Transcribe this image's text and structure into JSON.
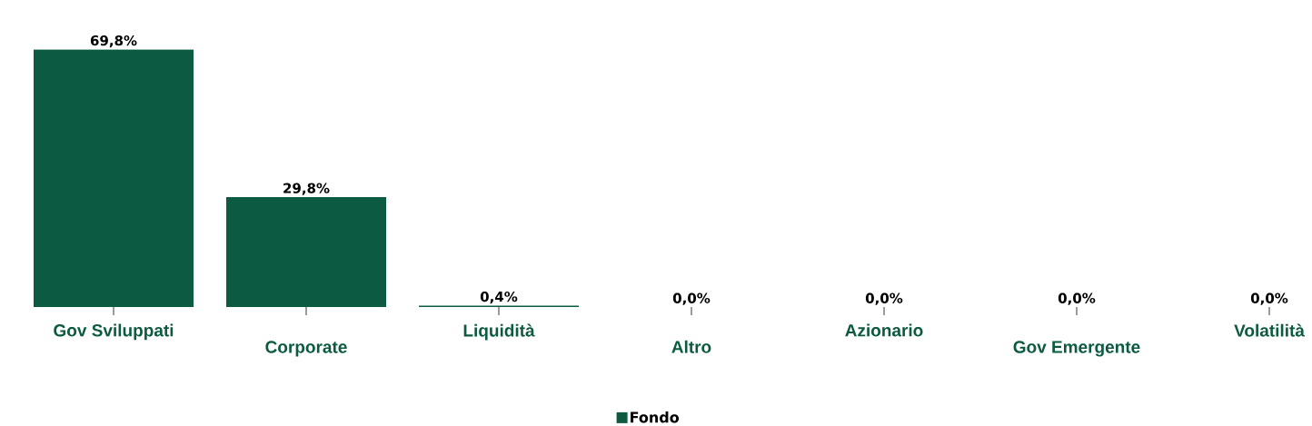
{
  "chart_data": {
    "type": "bar",
    "categories": [
      "Gov Sviluppati",
      "Corporate",
      "Liquidità",
      "Altro",
      "Azionario",
      "Gov Emergente",
      "Volatilità"
    ],
    "series": [
      {
        "name": "Fondo",
        "color": "#0b5a41",
        "values": [
          69.8,
          29.8,
          0.4,
          0.0,
          0.0,
          0.0,
          0.0
        ],
        "value_labels": [
          "69,8%",
          "29,8%",
          "0,4%",
          "0,0%",
          "0,0%",
          "0,0%",
          "0,0%"
        ]
      }
    ],
    "legend": "bottom"
  }
}
